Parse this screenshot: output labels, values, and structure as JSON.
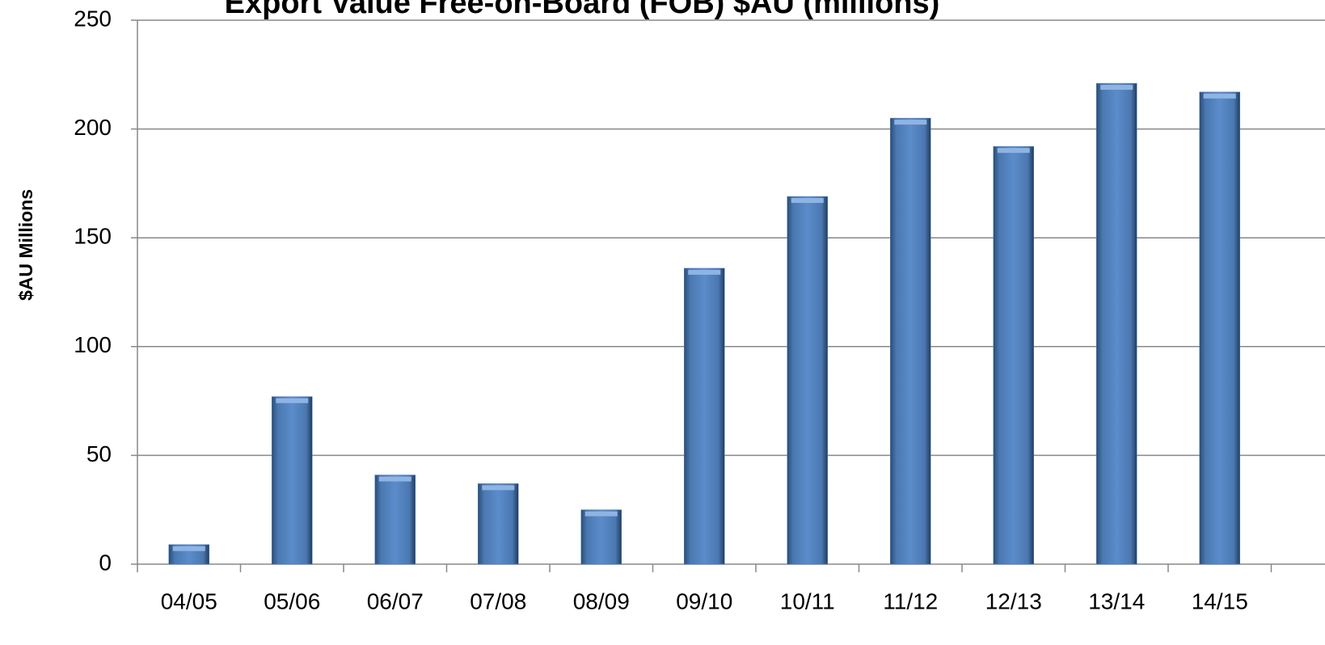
{
  "chart_data": {
    "type": "bar",
    "title": "Export Value Free-on-Board (FOB) $AU (millions)",
    "y_label": "$AU Millions",
    "categories": [
      "04/05",
      "05/06",
      "06/07",
      "07/08",
      "08/09",
      "09/10",
      "10/11",
      "11/12",
      "12/13",
      "13/14",
      "14/15"
    ],
    "values": [
      9,
      77,
      41,
      37,
      25,
      136,
      169,
      205,
      192,
      221,
      217
    ],
    "color": "#4f81bd",
    "ylim": [
      0,
      250
    ],
    "yticks": [
      0,
      50,
      100,
      150,
      200,
      250
    ],
    "grid": true
  }
}
